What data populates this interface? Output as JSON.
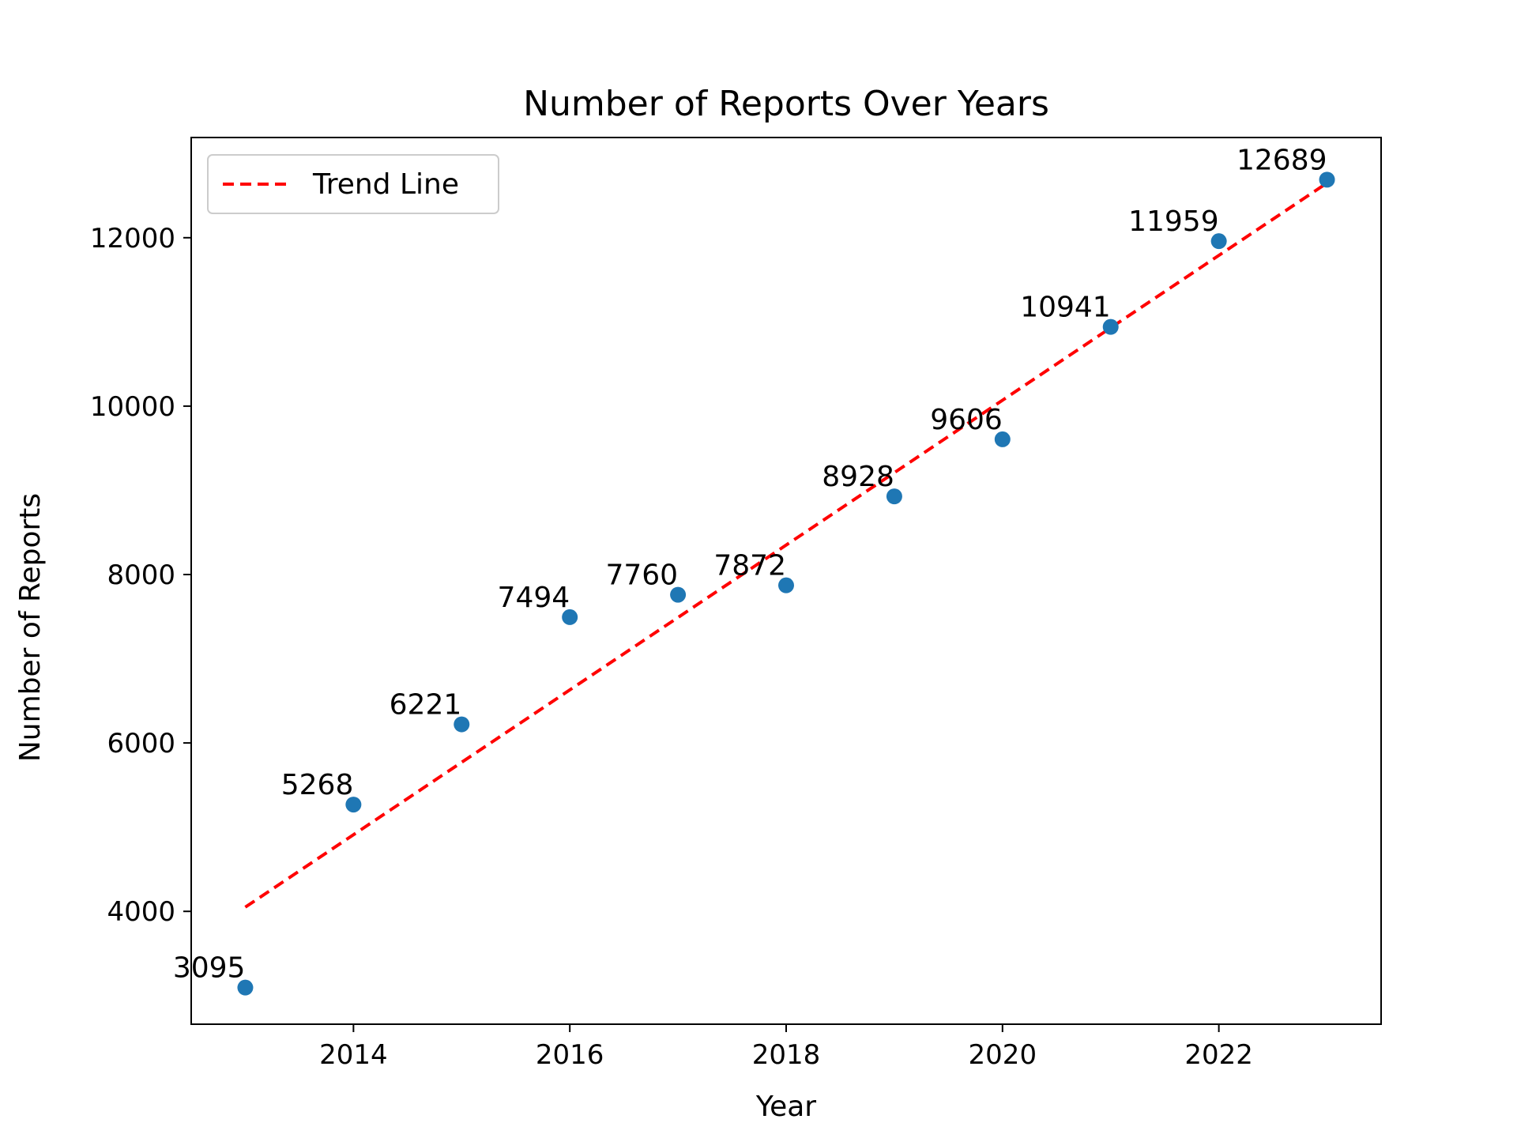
{
  "chart_data": {
    "type": "scatter",
    "title": "Number of Reports Over Years",
    "xlabel": "Year",
    "ylabel": "Number of Reports",
    "xlim": [
      2012.5,
      2023.5
    ],
    "ylim": [
      2660,
      13190
    ],
    "xticks": [
      2014,
      2016,
      2018,
      2020,
      2022
    ],
    "yticks": [
      4000,
      6000,
      8000,
      10000,
      12000
    ],
    "grid": false,
    "legend": {
      "placement": "top-left",
      "entries": [
        "Trend Line"
      ]
    },
    "series": [
      {
        "name": "",
        "type": "scatter",
        "color": "#1f77b4",
        "x": [
          2013,
          2014,
          2015,
          2016,
          2017,
          2018,
          2019,
          2020,
          2021,
          2022,
          2023
        ],
        "y": [
          3095,
          5268,
          6221,
          7494,
          7760,
          7872,
          8928,
          9606,
          10941,
          11959,
          12689
        ],
        "labels": [
          "3095",
          "5268",
          "6221",
          "7494",
          "7760",
          "7872",
          "8928",
          "9606",
          "10941",
          "11959",
          "12689"
        ]
      },
      {
        "name": "Trend Line",
        "type": "line",
        "style": "dashed",
        "color": "#ff0000",
        "x": [
          2013,
          2023
        ],
        "y": [
          4050,
          12650
        ]
      }
    ]
  }
}
